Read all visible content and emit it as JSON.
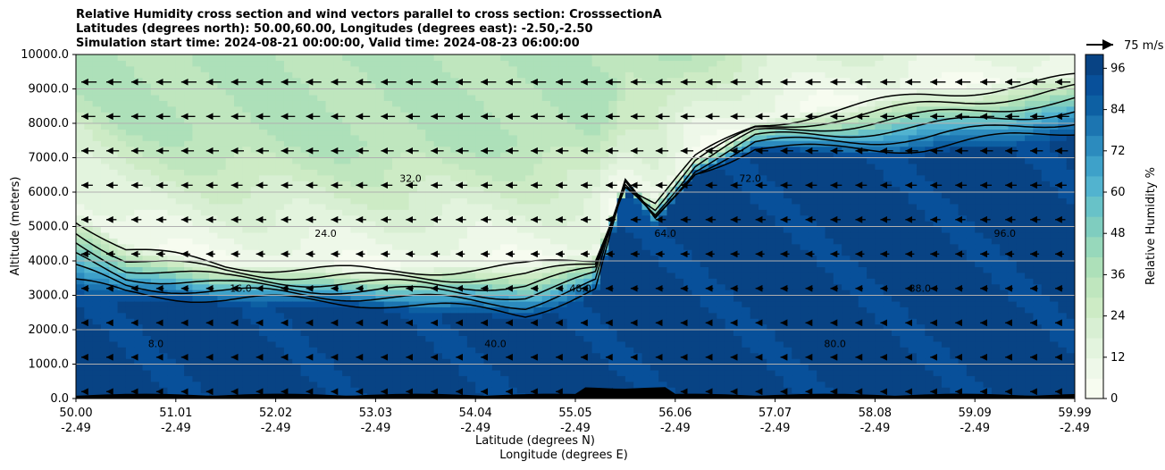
{
  "chart_data": {
    "type": "heatmap",
    "title_lines": [
      "Relative Humidity cross section and wind vectors parallel to cross section: CrosssectionA",
      "Latitudes (degrees north): 50.00,60.00, Longitudes (degrees east): -2.50,-2.50",
      "Simulation start time: 2024-08-21 00:00:00, Valid time: 2024-08-23 06:00:00"
    ],
    "xlabel_lat": "Latitude (degrees N)",
    "xlabel_lon": "Longitude (degrees E)",
    "ylabel": "Altitude (meters)",
    "ylim": [
      0,
      10000
    ],
    "y_ticks": [
      "0.0",
      "1000.0",
      "2000.0",
      "3000.0",
      "4000.0",
      "5000.0",
      "6000.0",
      "7000.0",
      "8000.0",
      "9000.0",
      "10000.0"
    ],
    "x_ticks_lat": [
      "50.00",
      "51.01",
      "52.02",
      "53.03",
      "54.04",
      "55.05",
      "56.06",
      "57.07",
      "58.08",
      "59.09",
      "59.99"
    ],
    "x_ticks_lon": [
      "-2.49",
      "-2.49",
      "-2.49",
      "-2.49",
      "-2.49",
      "-2.49",
      "-2.49",
      "-2.49",
      "-2.49",
      "-2.49",
      "-2.49"
    ],
    "colorbar": {
      "label": "Relative Humidity %",
      "range": [
        0,
        100
      ],
      "ticks": [
        "0",
        "12",
        "24",
        "36",
        "48",
        "60",
        "72",
        "84",
        "96"
      ],
      "colors": [
        "#f7fcf0",
        "#eef8e9",
        "#e3f4de",
        "#d8efd3",
        "#cdebc5",
        "#bfe6be",
        "#ade0b9",
        "#97d8bb",
        "#7fcdbf",
        "#68c2c8",
        "#52b3cf",
        "#3ea1c9",
        "#2c8bbe",
        "#1c75b1",
        "#0d60a3",
        "#08509a",
        "#084384"
      ]
    },
    "quiver_key": "75 m/s",
    "contour_labels": [
      "8.0",
      "16.0",
      "24.0",
      "32.0",
      "40.0",
      "48.0",
      "64.0",
      "72.0",
      "80.0",
      "88.0",
      "96.0"
    ],
    "rh_profile_description": {
      "x_fraction": [
        0.0,
        0.05,
        0.15,
        0.3,
        0.45,
        0.52,
        0.55,
        0.58,
        0.62,
        0.68,
        0.75,
        0.85,
        1.0
      ],
      "moist_top_m": [
        3000,
        2800,
        2700,
        2600,
        2200,
        3000,
        6200,
        5000,
        6500,
        7200,
        7000,
        7000,
        7500
      ],
      "dry_bottom_m": [
        5500,
        4500,
        4000,
        3800,
        4000,
        4200,
        6300,
        5800,
        7000,
        8000,
        8500,
        9000,
        9500
      ]
    }
  }
}
